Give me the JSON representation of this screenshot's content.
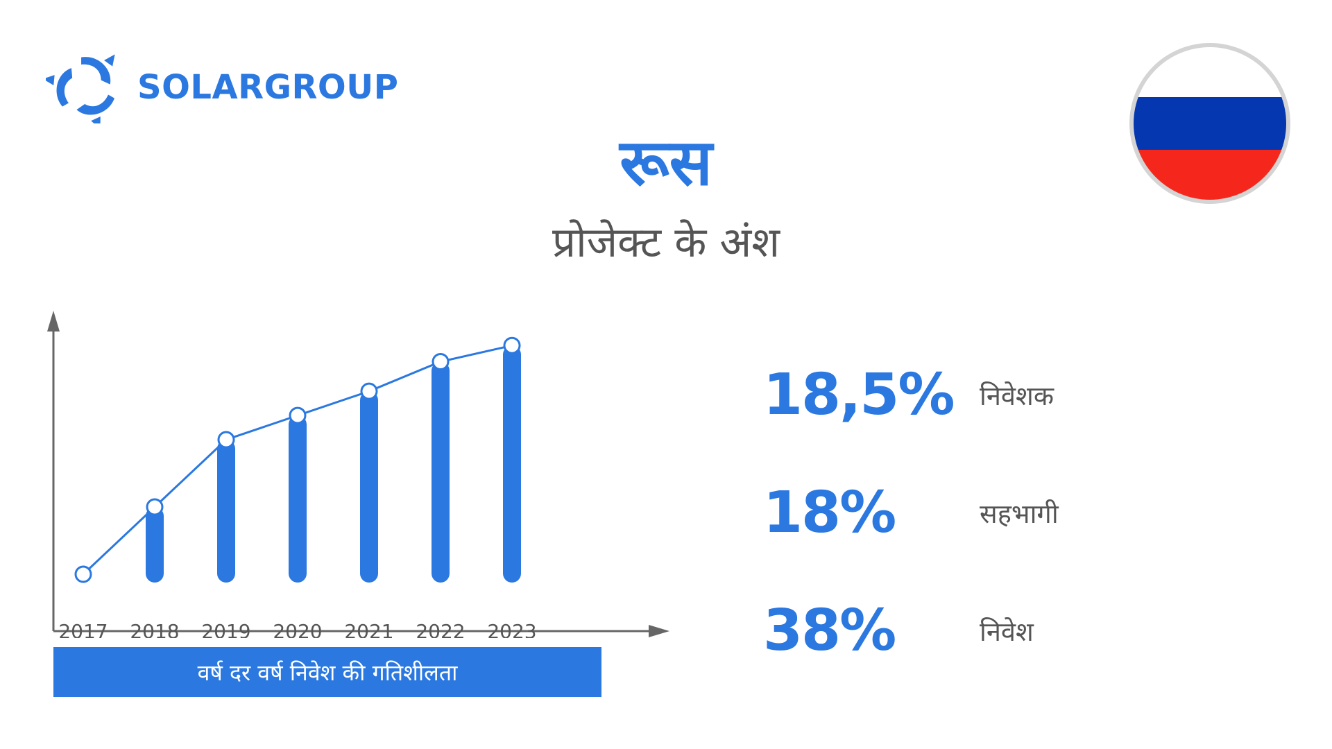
{
  "brand": {
    "name": "SOLARGROUP",
    "color": "#2a78e0"
  },
  "header": {
    "title": "रूस",
    "subtitle": "प्रोजेक्ट के अंश"
  },
  "flag": {
    "country": "russia-flag",
    "colors": [
      "#ffffff",
      "#0437b0",
      "#f5271c"
    ]
  },
  "chart_data": {
    "type": "bar",
    "title": "वर्ष दर वर्ष निवेश की गतिशीलता",
    "categories": [
      "2017",
      "2018",
      "2019",
      "2020",
      "2021",
      "2022",
      "2023"
    ],
    "series": [
      {
        "name": "bars",
        "values": [
          0,
          25,
          50,
          59,
          68,
          79,
          85
        ]
      },
      {
        "name": "line",
        "values": [
          0,
          25,
          50,
          59,
          68,
          79,
          85
        ]
      }
    ],
    "ylim": [
      0,
      100
    ],
    "xlabel": "",
    "ylabel": "",
    "color": "#2a78e0"
  },
  "stats": [
    {
      "value": "18,5%",
      "label": "निवेशक"
    },
    {
      "value": "18%",
      "label": "सहभागी"
    },
    {
      "value": "38%",
      "label": "निवेश"
    }
  ]
}
